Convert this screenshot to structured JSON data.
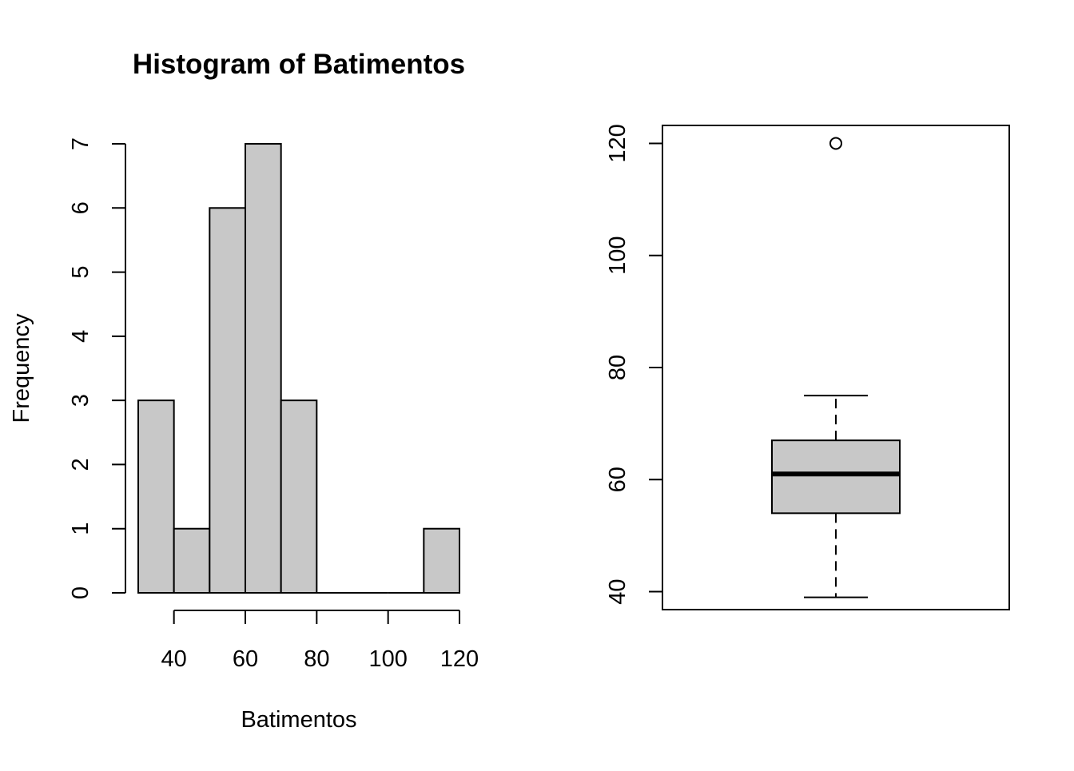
{
  "chart_data": [
    {
      "type": "histogram",
      "title": "Histogram of Batimentos",
      "xlabel": "Batimentos",
      "ylabel": "Frequency",
      "bins": [
        {
          "from": 30,
          "to": 40,
          "count": 3
        },
        {
          "from": 40,
          "to": 50,
          "count": 1
        },
        {
          "from": 50,
          "to": 60,
          "count": 6
        },
        {
          "from": 60,
          "to": 70,
          "count": 7
        },
        {
          "from": 70,
          "to": 80,
          "count": 3
        },
        {
          "from": 80,
          "to": 90,
          "count": 0
        },
        {
          "from": 90,
          "to": 100,
          "count": 0
        },
        {
          "from": 100,
          "to": 110,
          "count": 0
        },
        {
          "from": 110,
          "to": 120,
          "count": 1
        }
      ],
      "xlim": [
        30,
        120
      ],
      "ylim": [
        0,
        7
      ],
      "xticks": [
        40,
        60,
        80,
        100,
        120
      ],
      "yticks": [
        0,
        1,
        2,
        3,
        4,
        5,
        6,
        7
      ],
      "bar_fill": "#c8c8c8",
      "bar_stroke": "#000000",
      "grid": false
    },
    {
      "type": "boxplot",
      "title": "",
      "xlabel": "",
      "ylabel": "",
      "ylim": [
        36.8,
        123.2
      ],
      "yticks": [
        40,
        60,
        80,
        100,
        120
      ],
      "whisker_low": 39,
      "q1": 54,
      "median": 61,
      "q3": 67,
      "whisker_high": 75,
      "outliers": [
        120
      ],
      "box_fill": "#c8c8c8",
      "grid": false
    }
  ]
}
